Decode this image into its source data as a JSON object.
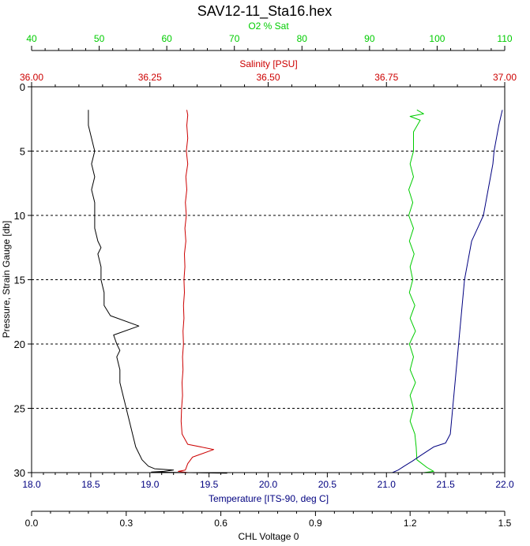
{
  "chart_data": {
    "type": "line",
    "title": "SAV12-11_Sta16.hex",
    "grid": "horizontal dashed",
    "plot_background": "#ffffff",
    "axes": {
      "pressure": {
        "label": "Pressure, Strain Gauge [db]",
        "range": [
          0,
          30
        ],
        "reversed": true,
        "ticks": [
          "0",
          "5",
          "10",
          "15",
          "20",
          "25",
          "30"
        ],
        "color": "#000000"
      },
      "o2": {
        "label": "O2 % Sat",
        "range": [
          40,
          110
        ],
        "ticks": [
          "40",
          "50",
          "60",
          "70",
          "80",
          "90",
          "100",
          "110"
        ],
        "color": "#00cc00"
      },
      "salinity": {
        "label": "Salinity [PSU]",
        "range": [
          36.0,
          37.0
        ],
        "ticks": [
          "36.00",
          "36.25",
          "36.50",
          "36.75",
          "37.00"
        ],
        "color": "#cc0000"
      },
      "temperature": {
        "label": "Temperature [ITS-90, deg C]",
        "range": [
          18.0,
          22.0
        ],
        "ticks": [
          "18.0",
          "18.5",
          "19.0",
          "19.5",
          "20.0",
          "20.5",
          "21.0",
          "21.5",
          "22.0"
        ],
        "color": "#000080"
      },
      "chl": {
        "label": "CHL Voltage 0",
        "range": [
          0.0,
          1.5
        ],
        "ticks": [
          "0.0",
          "0.3",
          "0.6",
          "0.9",
          "1.2",
          "1.5"
        ],
        "color": "#000000"
      }
    },
    "series": [
      {
        "axis": "chl",
        "color": "#000000",
        "points": [
          [
            0.18,
            1.8
          ],
          [
            0.18,
            2.2
          ],
          [
            0.18,
            3
          ],
          [
            0.19,
            4
          ],
          [
            0.2,
            5
          ],
          [
            0.19,
            6
          ],
          [
            0.2,
            7
          ],
          [
            0.19,
            8
          ],
          [
            0.2,
            9
          ],
          [
            0.2,
            10
          ],
          [
            0.2,
            11
          ],
          [
            0.21,
            12
          ],
          [
            0.22,
            12.5
          ],
          [
            0.21,
            13
          ],
          [
            0.22,
            14
          ],
          [
            0.22,
            15
          ],
          [
            0.23,
            16
          ],
          [
            0.23,
            17
          ],
          [
            0.25,
            17.8
          ],
          [
            0.34,
            18.6
          ],
          [
            0.26,
            19.3
          ],
          [
            0.27,
            20
          ],
          [
            0.28,
            20.5
          ],
          [
            0.27,
            21
          ],
          [
            0.28,
            22
          ],
          [
            0.28,
            23
          ],
          [
            0.29,
            24
          ],
          [
            0.3,
            25
          ],
          [
            0.31,
            26
          ],
          [
            0.32,
            27
          ],
          [
            0.33,
            28
          ],
          [
            0.35,
            29
          ],
          [
            0.37,
            29.5
          ],
          [
            0.39,
            29.7
          ],
          [
            0.45,
            29.8
          ],
          [
            0.42,
            29.9
          ],
          [
            0.38,
            29.95
          ],
          [
            0.5,
            30
          ],
          [
            0.62,
            30.05
          ]
        ]
      },
      {
        "axis": "salinity",
        "color": "#cc0000",
        "points": [
          [
            36.328,
            1.8
          ],
          [
            36.33,
            2.2
          ],
          [
            36.328,
            3
          ],
          [
            36.33,
            4
          ],
          [
            36.327,
            5
          ],
          [
            36.33,
            6
          ],
          [
            36.326,
            7
          ],
          [
            36.328,
            8
          ],
          [
            36.325,
            9
          ],
          [
            36.327,
            10
          ],
          [
            36.324,
            11
          ],
          [
            36.326,
            12
          ],
          [
            36.323,
            13
          ],
          [
            36.324,
            14
          ],
          [
            36.322,
            15
          ],
          [
            36.323,
            16
          ],
          [
            36.321,
            17
          ],
          [
            36.322,
            18
          ],
          [
            36.32,
            19
          ],
          [
            36.321,
            20
          ],
          [
            36.319,
            21
          ],
          [
            36.32,
            22
          ],
          [
            36.318,
            23
          ],
          [
            36.319,
            24
          ],
          [
            36.317,
            25
          ],
          [
            36.316,
            26
          ],
          [
            36.318,
            27
          ],
          [
            36.33,
            27.8
          ],
          [
            36.385,
            28.2
          ],
          [
            36.34,
            28.8
          ],
          [
            36.33,
            29.3
          ],
          [
            36.325,
            29.8
          ],
          [
            36.31,
            29.9
          ],
          [
            36.33,
            30
          ]
        ]
      },
      {
        "axis": "o2",
        "color": "#00cc00",
        "points": [
          [
            97,
            1.8
          ],
          [
            98,
            2.1
          ],
          [
            96,
            2.3
          ],
          [
            97.5,
            2.6
          ],
          [
            96.5,
            3.5
          ],
          [
            96.5,
            5
          ],
          [
            96,
            6
          ],
          [
            96.5,
            7
          ],
          [
            95.8,
            8
          ],
          [
            96.4,
            9
          ],
          [
            95.8,
            10
          ],
          [
            96.5,
            11
          ],
          [
            95.9,
            12
          ],
          [
            96.6,
            13
          ],
          [
            96,
            14
          ],
          [
            96.4,
            15
          ],
          [
            95.9,
            16
          ],
          [
            96.7,
            17
          ],
          [
            96,
            18
          ],
          [
            96.8,
            19
          ],
          [
            95.9,
            20
          ],
          [
            96.5,
            21
          ],
          [
            96,
            22
          ],
          [
            96.8,
            23
          ],
          [
            96,
            24
          ],
          [
            96.5,
            25
          ],
          [
            96,
            26
          ],
          [
            96.7,
            27
          ],
          [
            96.9,
            28
          ],
          [
            97,
            29
          ],
          [
            98.5,
            29.6
          ],
          [
            99.5,
            29.9
          ],
          [
            98,
            30
          ]
        ]
      },
      {
        "axis": "temperature",
        "color": "#000080",
        "points": [
          [
            21.98,
            1.8
          ],
          [
            21.95,
            3
          ],
          [
            21.93,
            4
          ],
          [
            21.91,
            5
          ],
          [
            21.9,
            6
          ],
          [
            21.88,
            7
          ],
          [
            21.86,
            8
          ],
          [
            21.84,
            9
          ],
          [
            21.82,
            10
          ],
          [
            21.77,
            11
          ],
          [
            21.72,
            12
          ],
          [
            21.7,
            13
          ],
          [
            21.68,
            14
          ],
          [
            21.66,
            15
          ],
          [
            21.65,
            16
          ],
          [
            21.64,
            17
          ],
          [
            21.63,
            18
          ],
          [
            21.62,
            19
          ],
          [
            21.61,
            20
          ],
          [
            21.6,
            21
          ],
          [
            21.59,
            22
          ],
          [
            21.58,
            23
          ],
          [
            21.57,
            24
          ],
          [
            21.56,
            25
          ],
          [
            21.55,
            26
          ],
          [
            21.54,
            27
          ],
          [
            21.5,
            27.7
          ],
          [
            21.4,
            28
          ],
          [
            21.3,
            28.6
          ],
          [
            21.22,
            29.1
          ],
          [
            21.15,
            29.5
          ],
          [
            21.1,
            29.8
          ],
          [
            21.05,
            30
          ]
        ]
      }
    ]
  }
}
